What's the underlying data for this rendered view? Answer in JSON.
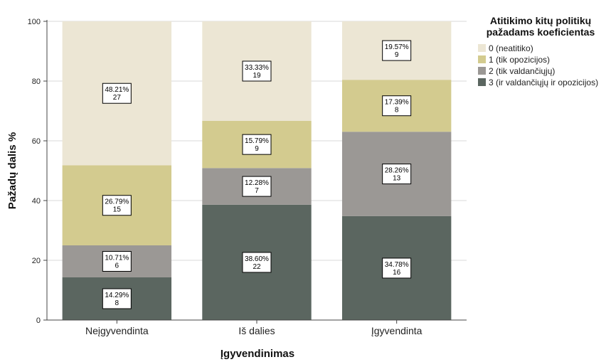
{
  "chart_data": {
    "type": "bar",
    "stacked": true,
    "xlabel": "Įgyvendinimas",
    "ylabel": "Pažadų dalis %",
    "ylim": [
      0,
      100
    ],
    "yticks": [
      "0",
      "20",
      "40",
      "60",
      "80",
      "100"
    ],
    "categories": [
      "Neįgyvendinta",
      "Iš dalies",
      "Įgyvendinta"
    ],
    "legend": {
      "title": [
        "Atitikimo kitų politikų",
        "pažadams koeficientas"
      ],
      "position": "right"
    },
    "series": [
      {
        "name": "3 (ir valdančiųjų ir opozicijos)",
        "color": "#5b6660",
        "values": [
          14.29,
          38.6,
          34.78
        ],
        "labels": [
          [
            "14.29%",
            "8"
          ],
          [
            "38.60%",
            "22"
          ],
          [
            "34.78%",
            "16"
          ]
        ]
      },
      {
        "name": "2 (tik valdančiųjų)",
        "color": "#9b9895",
        "values": [
          10.71,
          12.28,
          28.26
        ],
        "labels": [
          [
            "10.71%",
            "6"
          ],
          [
            "12.28%",
            "7"
          ],
          [
            "28.26%",
            "13"
          ]
        ]
      },
      {
        "name": "1 (tik opozicijos)",
        "color": "#d3cb8f",
        "values": [
          26.79,
          15.79,
          17.39
        ],
        "labels": [
          [
            "26.79%",
            "15"
          ],
          [
            "15.79%",
            "9"
          ],
          [
            "17.39%",
            "8"
          ]
        ]
      },
      {
        "name": "0 (neatitiko)",
        "color": "#ece6d4",
        "values": [
          48.21,
          33.33,
          19.57
        ],
        "labels": [
          [
            "48.21%",
            "27"
          ],
          [
            "33.33%",
            "19"
          ],
          [
            "19.57%",
            "9"
          ]
        ]
      }
    ],
    "legend_order": [
      3,
      2,
      1,
      0
    ],
    "grid": true
  }
}
